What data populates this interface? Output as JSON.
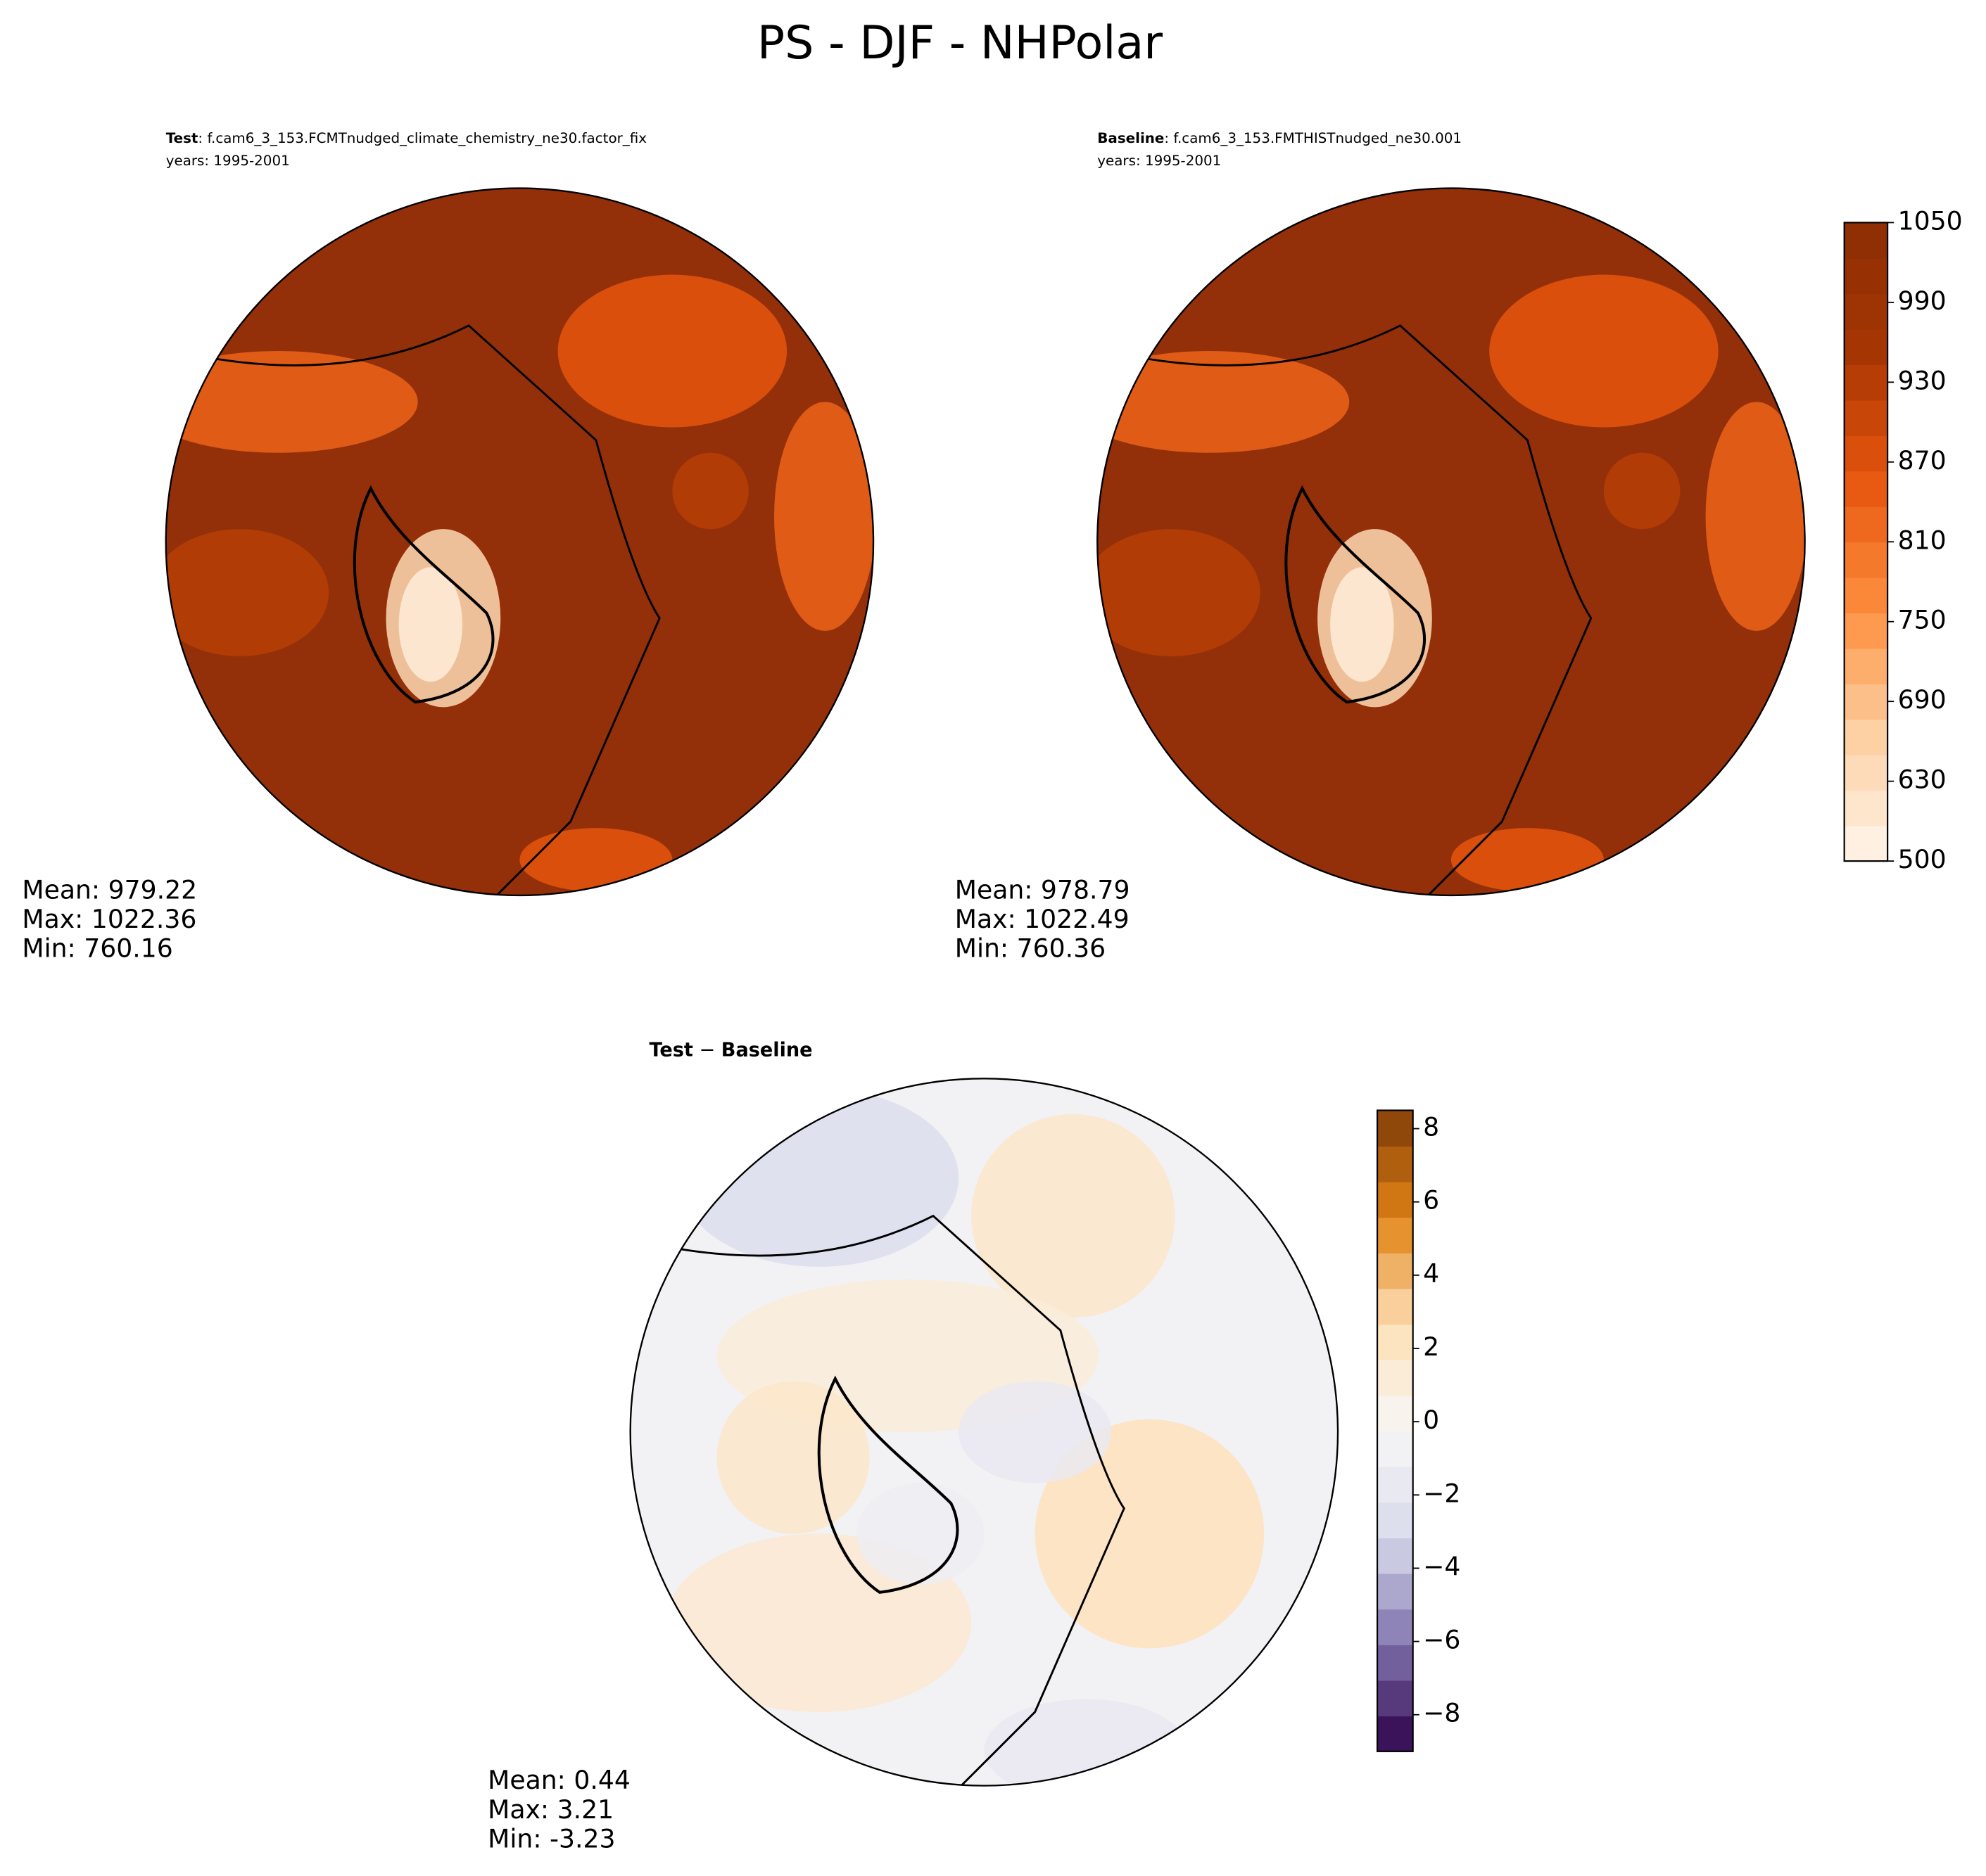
{
  "chart_data": {
    "type": "polar-map",
    "title": "PS - DJF - NHPolar",
    "panels": [
      {
        "label": "Test",
        "subtitle": ": f.cam6_3_153.FCMTnudged_climate_chemistry_ne30.factor_fix",
        "years": "years: 1995-2001",
        "stats": [
          "Mean: 979.22",
          "Max: 1022.36",
          "Min: 760.16"
        ]
      },
      {
        "label": "Baseline",
        "subtitle": ": f.cam6_3_153.FMTHISTnudged_ne30.001",
        "years": "years: 1995-2001",
        "stats": [
          "Mean: 978.79",
          "Max: 1022.49",
          "Min: 760.36"
        ]
      },
      {
        "label": "Test",
        "operator": " − ",
        "label2": "Baseline",
        "stats": [
          "Mean:  0.44",
          "Max:  3.21",
          "Min: -3.23"
        ]
      }
    ],
    "colorbars": [
      {
        "colors": [
          "#fff5eb",
          "#fdd0a2",
          "#fd8d3c",
          "#e6550d",
          "#a63603",
          "#8c2d04"
        ],
        "ylim": [
          500,
          1050
        ],
        "yticks": [
          500,
          630,
          690,
          750,
          810,
          870,
          930,
          990,
          1050
        ]
      },
      {
        "colors": [
          "#2d004b",
          "#8073ac",
          "#d8daeb",
          "#f7f7f7",
          "#fee0b6",
          "#e08214",
          "#7f3b08"
        ],
        "ylim": [
          -9,
          8.5
        ],
        "yticks": [
          {
            "value": -8,
            "label": "−8"
          },
          {
            "value": -6,
            "label": "−6"
          },
          {
            "value": -4,
            "label": "−4"
          },
          {
            "value": -2,
            "label": "−2"
          },
          0,
          2,
          4,
          6,
          8
        ]
      }
    ]
  }
}
